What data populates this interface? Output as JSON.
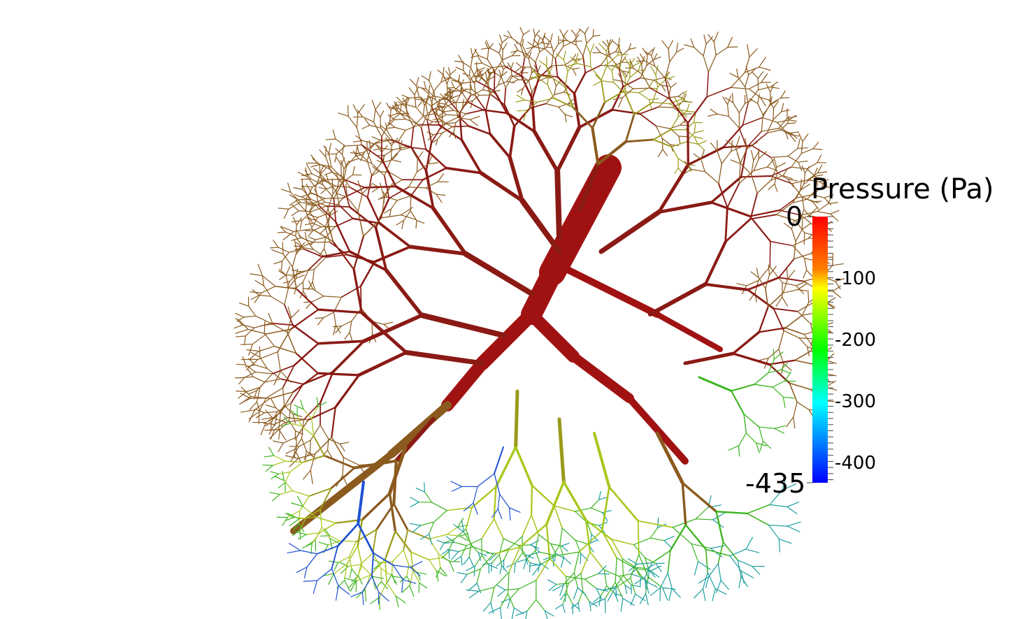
{
  "colorbar": {
    "title": "Pressure (Pa)",
    "range_max": "0",
    "range_min": "-435",
    "tick_labels": [
      "-100",
      "-200",
      "-300",
      "-400"
    ],
    "tick_values": [
      -100,
      -200,
      -300,
      -400
    ],
    "min_value": -435,
    "max_value": 0,
    "colors": [
      "#ff0000",
      "#ff8000",
      "#ffff00",
      "#00ff00",
      "#00ffff",
      "#0000ff"
    ]
  },
  "scene": {
    "description_color_trunk": "#a01212",
    "colors": {
      "trunk": "#a01212",
      "dark_red": "#8a1a14",
      "brown": "#8b5a1e",
      "olive": "#9a9a1a",
      "yellow_green": "#a8c81e",
      "green": "#3cb41e",
      "teal": "#1e9e9e",
      "blue": "#1e50d2"
    }
  }
}
